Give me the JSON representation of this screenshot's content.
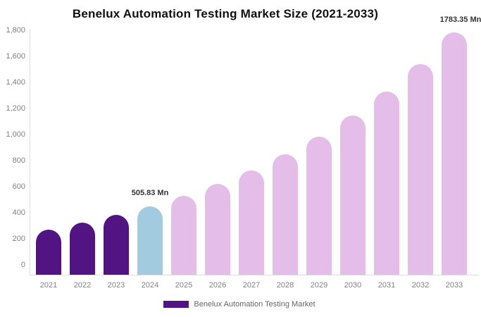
{
  "title": "Benelux Automation Testing Market Size (2021-2033)",
  "chart_data": {
    "type": "bar",
    "title": "Benelux Automation Testing Market Size (2021-2033)",
    "categories": [
      "2021",
      "2022",
      "2023",
      "2024",
      "2025",
      "2026",
      "2027",
      "2028",
      "2029",
      "2030",
      "2031",
      "2032",
      "2033"
    ],
    "values": [
      332.4,
      382.4,
      439.8,
      505.83,
      581.9,
      669.3,
      769.9,
      885.6,
      1018.8,
      1171.9,
      1348.0,
      1550.6,
      1783.35
    ],
    "bar_colors": [
      "#521482",
      "#521482",
      "#521482",
      "#A2CBE0",
      "#E4BDE8",
      "#E4BDE8",
      "#E4BDE8",
      "#E4BDE8",
      "#E4BDE8",
      "#E4BDE8",
      "#E4BDE8",
      "#E4BDE8",
      "#E4BDE8"
    ],
    "xlabel": "",
    "ylabel": "",
    "ylim": [
      0,
      1800
    ],
    "grid": false,
    "legend_position": "bottom",
    "yticks": [
      {
        "value": 0,
        "label": "0"
      },
      {
        "value": 200,
        "label": "200"
      },
      {
        "value": 400,
        "label": "400"
      },
      {
        "value": 600,
        "label": "600"
      },
      {
        "value": 800,
        "label": "800"
      },
      {
        "value": 1000,
        "label": "1,000"
      },
      {
        "value": 1200,
        "label": "1,200"
      },
      {
        "value": 1400,
        "label": "1,400"
      },
      {
        "value": 1600,
        "label": "1,600"
      },
      {
        "value": 1800,
        "label": "1,800"
      }
    ],
    "data_labels": [
      {
        "index": 3,
        "text": "505.83 Mn",
        "dx": 0
      },
      {
        "index": 12,
        "text": "1783.35 Mn",
        "dx": 9
      }
    ],
    "legend": [
      {
        "label": "Benelux Automation Testing Market",
        "color": "#521482"
      }
    ]
  },
  "colors": {
    "past_bars": "#521482",
    "current_year_bar": "#A2CBE0",
    "forecast_bars": "#E4BDE8",
    "axis_line": "#dddddd",
    "tick_text": "#808080",
    "data_label_text": "#333333",
    "legend_text": "#666666",
    "title_text": "#111111",
    "background": "#ffffff"
  }
}
